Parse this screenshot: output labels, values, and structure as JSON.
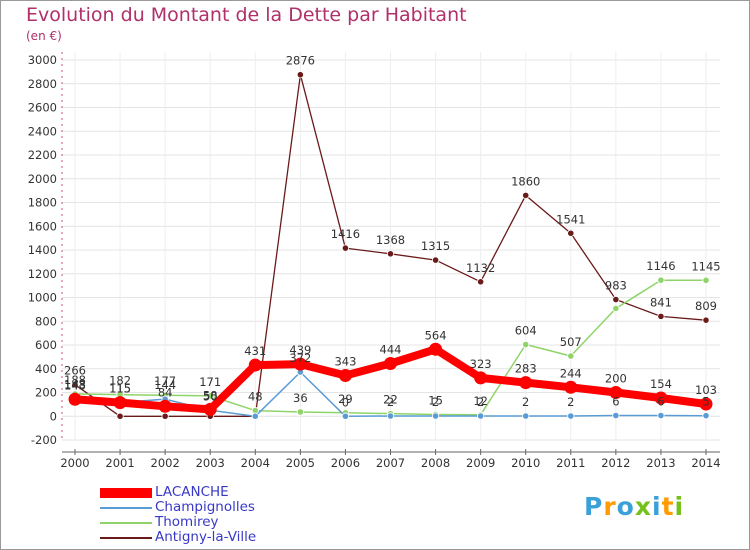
{
  "title": "Evolution du Montant de la Dette par Habitant",
  "unit_label": "(en €)",
  "logo": {
    "text": "Proxiti",
    "letter_colors": [
      "#3ba0d8",
      "#ff9a00",
      "#3ba0d8",
      "#74c11a",
      "#3ba0d8",
      "#ff9a00",
      "#74c11a"
    ]
  },
  "chart_data": {
    "type": "line",
    "title": "Evolution du Montant de la Dette par Habitant",
    "ylabel": "(en €)",
    "x": [
      "2000",
      "2001",
      "2002",
      "2003",
      "2004",
      "2005",
      "2006",
      "2007",
      "2008",
      "2009",
      "2010",
      "2011",
      "2012",
      "2013",
      "2014"
    ],
    "ylim": [
      -200,
      3000
    ],
    "yticks": [
      -200,
      0,
      200,
      400,
      600,
      800,
      1000,
      1200,
      1400,
      1600,
      1800,
      2000,
      2200,
      2400,
      2600,
      2800,
      3000
    ],
    "grid": true,
    "legend_position": "bottom-left",
    "series": [
      {
        "name": "LACANCHE",
        "color": "#ff0000",
        "values": [
          143,
          115,
          84,
          58,
          431,
          439,
          343,
          444,
          564,
          323,
          283,
          244,
          200,
          154,
          103
        ]
      },
      {
        "name": "Champignolles",
        "color": "#5b9bd5",
        "values": [
          148,
          115,
          144,
          50,
          0,
          372,
          0,
          2,
          2,
          2,
          2,
          2,
          6,
          6,
          5
        ]
      },
      {
        "name": "Thomirey",
        "color": "#8fd468",
        "values": [
          188,
          182,
          177,
          171,
          48,
          36,
          29,
          22,
          15,
          12,
          604,
          507,
          908,
          1146,
          1145
        ]
      },
      {
        "name": "Antigny-la-Ville",
        "color": "#6b1a1a",
        "values": [
          266,
          0,
          0,
          0,
          0,
          2876,
          1416,
          1368,
          1315,
          1132,
          1860,
          1541,
          983,
          841,
          809
        ]
      }
    ],
    "data_labels": [
      {
        "series": "LACANCHE",
        "values": [
          143,
          115,
          84,
          58,
          431,
          439,
          343,
          444,
          564,
          323,
          283,
          244,
          200,
          154,
          103
        ]
      },
      {
        "series": "Champignolles",
        "values": [
          148,
          115,
          144,
          50,
          null,
          372,
          0,
          2,
          2,
          2,
          2,
          2,
          6,
          6,
          5
        ]
      },
      {
        "series": "Thomirey",
        "values": [
          188,
          182,
          177,
          171,
          48,
          36,
          29,
          22,
          15,
          12,
          604,
          507,
          null,
          1146,
          1145
        ]
      },
      {
        "series": "Antigny-la-Ville",
        "values": [
          266,
          null,
          null,
          null,
          null,
          2876,
          1416,
          1368,
          1315,
          1132,
          1860,
          1541,
          983,
          841,
          809
        ]
      }
    ]
  }
}
